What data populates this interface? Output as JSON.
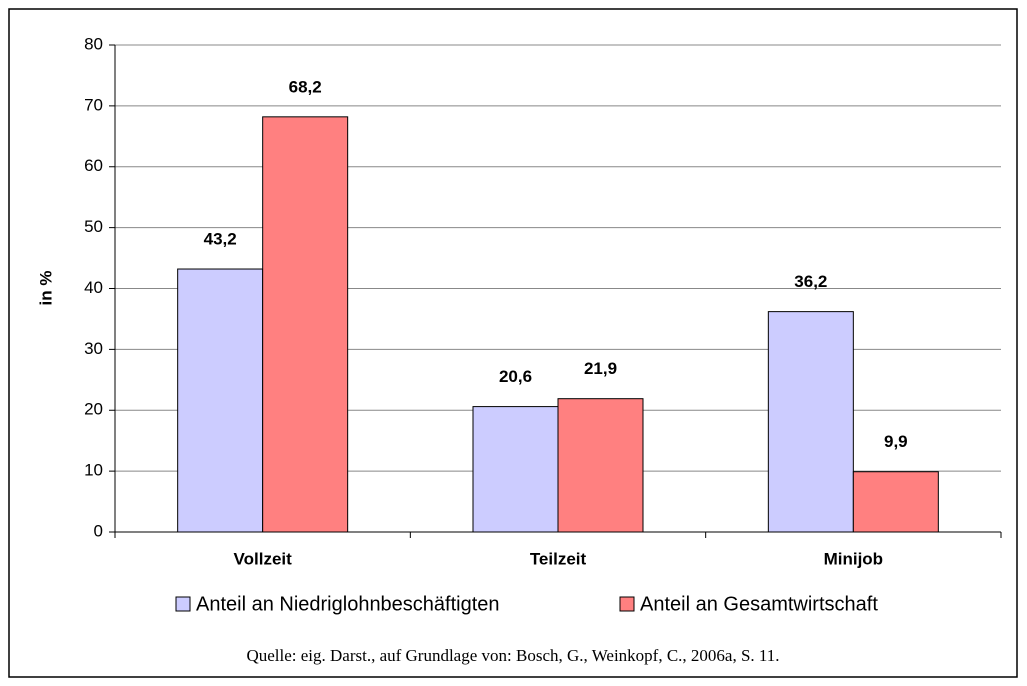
{
  "chart_data": {
    "type": "bar",
    "y_label": "in %",
    "categories": [
      "Vollzeit",
      "Teilzeit",
      "Minijob"
    ],
    "series": [
      {
        "name": "Anteil an Niedriglohnbeschäftigten",
        "color": "#ccccff",
        "values": [
          43.2,
          20.6,
          36.2
        ],
        "value_labels": [
          "43,2",
          "20,6",
          "36,2"
        ]
      },
      {
        "name": "Anteil an Gesamtwirtschaft",
        "color": "#ff8080",
        "values": [
          68.2,
          21.9,
          9.9
        ],
        "value_labels": [
          "68,2",
          "21,9",
          "9,9"
        ]
      }
    ],
    "ylim": [
      0,
      80
    ],
    "yticks": [
      0,
      10,
      20,
      30,
      40,
      50,
      60,
      70,
      80
    ],
    "grid": true,
    "legend": "bottom",
    "source": "Quelle: eig. Darst., auf Grundlage von: Bosch, G., Weinkopf, C., 2006a, S. 11."
  }
}
